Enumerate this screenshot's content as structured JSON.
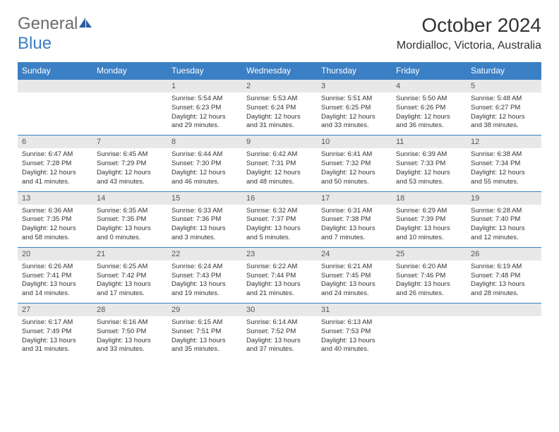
{
  "colors": {
    "header_bg": "#3b7fc4",
    "header_text": "#ffffff",
    "daynum_bg": "#e8e8e8",
    "daynum_text": "#555555",
    "body_text": "#333333",
    "logo_gray": "#6b6b6b",
    "logo_blue": "#3b7fc4",
    "background": "#ffffff",
    "row_border": "#3b7fc4"
  },
  "typography": {
    "font_family": "Arial, Helvetica, sans-serif",
    "month_title_size": 28,
    "location_size": 16,
    "dayhead_size": 12,
    "daynum_size": 11,
    "cell_size": 9.5
  },
  "logo": {
    "text_general": "General",
    "text_blue": "Blue",
    "icon_color": "#2b5f9e"
  },
  "title": "October 2024",
  "location": "Mordialloc, Victoria, Australia",
  "day_headers": [
    "Sunday",
    "Monday",
    "Tuesday",
    "Wednesday",
    "Thursday",
    "Friday",
    "Saturday"
  ],
  "weeks": [
    [
      {
        "num": "",
        "sunrise": "",
        "sunset": "",
        "daylight": ""
      },
      {
        "num": "",
        "sunrise": "",
        "sunset": "",
        "daylight": ""
      },
      {
        "num": "1",
        "sunrise": "Sunrise: 5:54 AM",
        "sunset": "Sunset: 6:23 PM",
        "daylight": "Daylight: 12 hours and 29 minutes."
      },
      {
        "num": "2",
        "sunrise": "Sunrise: 5:53 AM",
        "sunset": "Sunset: 6:24 PM",
        "daylight": "Daylight: 12 hours and 31 minutes."
      },
      {
        "num": "3",
        "sunrise": "Sunrise: 5:51 AM",
        "sunset": "Sunset: 6:25 PM",
        "daylight": "Daylight: 12 hours and 33 minutes."
      },
      {
        "num": "4",
        "sunrise": "Sunrise: 5:50 AM",
        "sunset": "Sunset: 6:26 PM",
        "daylight": "Daylight: 12 hours and 36 minutes."
      },
      {
        "num": "5",
        "sunrise": "Sunrise: 5:48 AM",
        "sunset": "Sunset: 6:27 PM",
        "daylight": "Daylight: 12 hours and 38 minutes."
      }
    ],
    [
      {
        "num": "6",
        "sunrise": "Sunrise: 6:47 AM",
        "sunset": "Sunset: 7:28 PM",
        "daylight": "Daylight: 12 hours and 41 minutes."
      },
      {
        "num": "7",
        "sunrise": "Sunrise: 6:45 AM",
        "sunset": "Sunset: 7:29 PM",
        "daylight": "Daylight: 12 hours and 43 minutes."
      },
      {
        "num": "8",
        "sunrise": "Sunrise: 6:44 AM",
        "sunset": "Sunset: 7:30 PM",
        "daylight": "Daylight: 12 hours and 46 minutes."
      },
      {
        "num": "9",
        "sunrise": "Sunrise: 6:42 AM",
        "sunset": "Sunset: 7:31 PM",
        "daylight": "Daylight: 12 hours and 48 minutes."
      },
      {
        "num": "10",
        "sunrise": "Sunrise: 6:41 AM",
        "sunset": "Sunset: 7:32 PM",
        "daylight": "Daylight: 12 hours and 50 minutes."
      },
      {
        "num": "11",
        "sunrise": "Sunrise: 6:39 AM",
        "sunset": "Sunset: 7:33 PM",
        "daylight": "Daylight: 12 hours and 53 minutes."
      },
      {
        "num": "12",
        "sunrise": "Sunrise: 6:38 AM",
        "sunset": "Sunset: 7:34 PM",
        "daylight": "Daylight: 12 hours and 55 minutes."
      }
    ],
    [
      {
        "num": "13",
        "sunrise": "Sunrise: 6:36 AM",
        "sunset": "Sunset: 7:35 PM",
        "daylight": "Daylight: 12 hours and 58 minutes."
      },
      {
        "num": "14",
        "sunrise": "Sunrise: 6:35 AM",
        "sunset": "Sunset: 7:35 PM",
        "daylight": "Daylight: 13 hours and 0 minutes."
      },
      {
        "num": "15",
        "sunrise": "Sunrise: 6:33 AM",
        "sunset": "Sunset: 7:36 PM",
        "daylight": "Daylight: 13 hours and 3 minutes."
      },
      {
        "num": "16",
        "sunrise": "Sunrise: 6:32 AM",
        "sunset": "Sunset: 7:37 PM",
        "daylight": "Daylight: 13 hours and 5 minutes."
      },
      {
        "num": "17",
        "sunrise": "Sunrise: 6:31 AM",
        "sunset": "Sunset: 7:38 PM",
        "daylight": "Daylight: 13 hours and 7 minutes."
      },
      {
        "num": "18",
        "sunrise": "Sunrise: 6:29 AM",
        "sunset": "Sunset: 7:39 PM",
        "daylight": "Daylight: 13 hours and 10 minutes."
      },
      {
        "num": "19",
        "sunrise": "Sunrise: 6:28 AM",
        "sunset": "Sunset: 7:40 PM",
        "daylight": "Daylight: 13 hours and 12 minutes."
      }
    ],
    [
      {
        "num": "20",
        "sunrise": "Sunrise: 6:26 AM",
        "sunset": "Sunset: 7:41 PM",
        "daylight": "Daylight: 13 hours and 14 minutes."
      },
      {
        "num": "21",
        "sunrise": "Sunrise: 6:25 AM",
        "sunset": "Sunset: 7:42 PM",
        "daylight": "Daylight: 13 hours and 17 minutes."
      },
      {
        "num": "22",
        "sunrise": "Sunrise: 6:24 AM",
        "sunset": "Sunset: 7:43 PM",
        "daylight": "Daylight: 13 hours and 19 minutes."
      },
      {
        "num": "23",
        "sunrise": "Sunrise: 6:22 AM",
        "sunset": "Sunset: 7:44 PM",
        "daylight": "Daylight: 13 hours and 21 minutes."
      },
      {
        "num": "24",
        "sunrise": "Sunrise: 6:21 AM",
        "sunset": "Sunset: 7:45 PM",
        "daylight": "Daylight: 13 hours and 24 minutes."
      },
      {
        "num": "25",
        "sunrise": "Sunrise: 6:20 AM",
        "sunset": "Sunset: 7:46 PM",
        "daylight": "Daylight: 13 hours and 26 minutes."
      },
      {
        "num": "26",
        "sunrise": "Sunrise: 6:19 AM",
        "sunset": "Sunset: 7:48 PM",
        "daylight": "Daylight: 13 hours and 28 minutes."
      }
    ],
    [
      {
        "num": "27",
        "sunrise": "Sunrise: 6:17 AM",
        "sunset": "Sunset: 7:49 PM",
        "daylight": "Daylight: 13 hours and 31 minutes."
      },
      {
        "num": "28",
        "sunrise": "Sunrise: 6:16 AM",
        "sunset": "Sunset: 7:50 PM",
        "daylight": "Daylight: 13 hours and 33 minutes."
      },
      {
        "num": "29",
        "sunrise": "Sunrise: 6:15 AM",
        "sunset": "Sunset: 7:51 PM",
        "daylight": "Daylight: 13 hours and 35 minutes."
      },
      {
        "num": "30",
        "sunrise": "Sunrise: 6:14 AM",
        "sunset": "Sunset: 7:52 PM",
        "daylight": "Daylight: 13 hours and 37 minutes."
      },
      {
        "num": "31",
        "sunrise": "Sunrise: 6:13 AM",
        "sunset": "Sunset: 7:53 PM",
        "daylight": "Daylight: 13 hours and 40 minutes."
      },
      {
        "num": "",
        "sunrise": "",
        "sunset": "",
        "daylight": ""
      },
      {
        "num": "",
        "sunrise": "",
        "sunset": "",
        "daylight": ""
      }
    ]
  ]
}
